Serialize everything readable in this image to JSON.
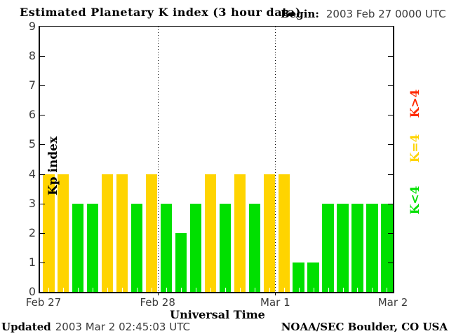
{
  "title": "Estimated Planetary K index (3 hour data)",
  "begin": {
    "label": "Begin:",
    "value": "2003 Feb 27 0000 UTC"
  },
  "y_axis": {
    "label": "Kp index",
    "ticks": [
      0,
      1,
      2,
      3,
      4,
      5,
      6,
      7,
      8,
      9
    ]
  },
  "x_axis": {
    "label": "Universal Time",
    "day_labels": [
      "Feb 27",
      "Feb 28",
      "Mar 1",
      "Mar 2"
    ]
  },
  "legend": [
    {
      "label": "K>4",
      "color": "#ff2a00"
    },
    {
      "label": "K=4",
      "color": "#ffd400"
    },
    {
      "label": "K<4",
      "color": "#00e000"
    }
  ],
  "footer": {
    "updated_label": "Updated",
    "updated_value": "2003 Mar  2 02:45:03 UTC",
    "credit": "NOAA/SEC Boulder, CO USA"
  },
  "chart_data": {
    "type": "bar",
    "title": "Estimated Planetary K index (3 hour data)",
    "xlabel": "Universal Time",
    "ylabel": "Kp index",
    "ylim": [
      0,
      9
    ],
    "y_ticks": [
      0,
      1,
      2,
      3,
      4,
      5,
      6,
      7,
      8,
      9
    ],
    "days": [
      "Feb 27",
      "Feb 28",
      "Mar 1"
    ],
    "x_end_label": "Mar 2",
    "hours_per_bar": 3,
    "bars_per_day": 8,
    "values": [
      4,
      4,
      3,
      3,
      4,
      4,
      3,
      4,
      3,
      2,
      3,
      4,
      3,
      4,
      3,
      4,
      4,
      1,
      1,
      3,
      3,
      3,
      3,
      3
    ],
    "color_rule": {
      "gt4": "#ff2a00",
      "eq4": "#ffd400",
      "lt4": "#00e000"
    },
    "grid": "dotted vertical day-separator lines",
    "legend_position": "right-rotated",
    "legend_entries": [
      "K>4",
      "K=4",
      "K<4"
    ]
  }
}
